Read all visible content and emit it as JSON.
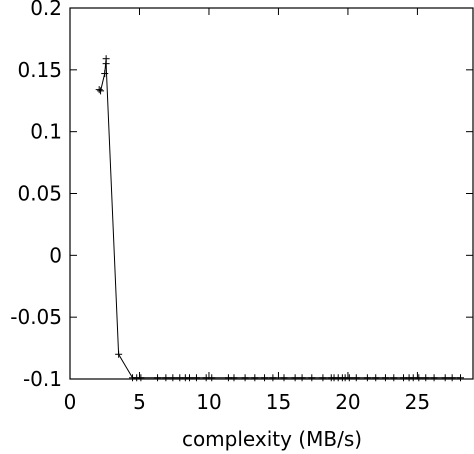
{
  "chart_data": {
    "type": "line",
    "title": "",
    "xlabel": "complexity (MB/s)",
    "ylabel": "",
    "xlim": [
      0,
      29
    ],
    "ylim": [
      -0.1,
      0.2
    ],
    "xticks": [
      "0",
      "5",
      "10",
      "15",
      "20",
      "25"
    ],
    "yticks": [
      "0.2",
      "0.15",
      "0.1",
      "0.05",
      "0",
      "-0.05",
      "-0.1"
    ],
    "grid": false,
    "series": [
      {
        "marker": "plus",
        "line_color": "#000000",
        "x": [
          2.1,
          2.2,
          2.5,
          2.6,
          2.6,
          3.5,
          4.5,
          4.8,
          5.1,
          6.3,
          6.9,
          7.4,
          7.9,
          8.3,
          8.6,
          9.1,
          9.8,
          10.2,
          11.4,
          11.8,
          12.6,
          13.3,
          14.0,
          14.6,
          15.4,
          16.2,
          16.7,
          17.4,
          18.2,
          18.8,
          19.0,
          19.3,
          19.6,
          19.8,
          20.1,
          20.6,
          21.4,
          22.0,
          22.7,
          23.3,
          24.0,
          24.4,
          24.7,
          25.1,
          25.6,
          26.2,
          27.0,
          27.5,
          28.1
        ],
        "y": [
          0.134,
          0.133,
          0.147,
          0.159,
          0.155,
          -0.08,
          -0.099,
          -0.099,
          -0.099,
          -0.099,
          -0.099,
          -0.099,
          -0.099,
          -0.099,
          -0.099,
          -0.099,
          -0.099,
          -0.099,
          -0.099,
          -0.099,
          -0.099,
          -0.099,
          -0.099,
          -0.099,
          -0.099,
          -0.099,
          -0.099,
          -0.099,
          -0.099,
          -0.099,
          -0.099,
          -0.099,
          -0.099,
          -0.099,
          -0.099,
          -0.099,
          -0.099,
          -0.099,
          -0.099,
          -0.099,
          -0.099,
          -0.099,
          -0.099,
          -0.099,
          -0.099,
          -0.099,
          -0.099,
          -0.099,
          -0.099
        ]
      }
    ]
  }
}
